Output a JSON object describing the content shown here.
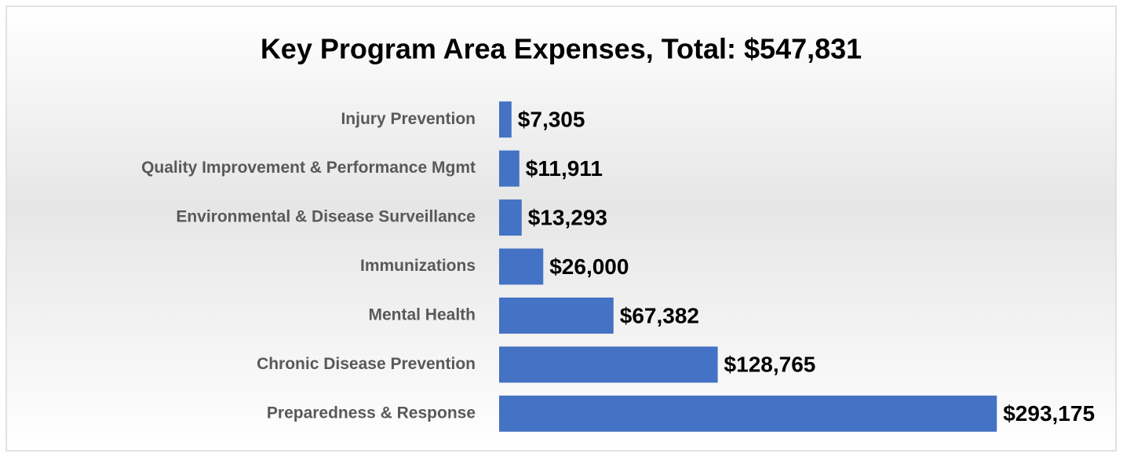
{
  "chart_data": {
    "type": "bar",
    "orientation": "horizontal",
    "title": "Key Program Area Expenses, Total: $547,831",
    "categories": [
      "Injury Prevention",
      "Quality Improvement & Performance Mgmt",
      "Environmental & Disease Surveillance",
      "Immunizations",
      "Mental Health",
      "Chronic Disease Prevention",
      "Preparedness & Response"
    ],
    "values": [
      7305,
      11911,
      13293,
      26000,
      67382,
      128765,
      293175
    ],
    "value_labels": [
      "$7,305",
      "$11,911",
      "$13,293",
      "$26,000",
      "$67,382",
      "$128,765",
      "$293,175"
    ],
    "color": "#4472c4",
    "xlim": [
      0,
      300000
    ]
  }
}
